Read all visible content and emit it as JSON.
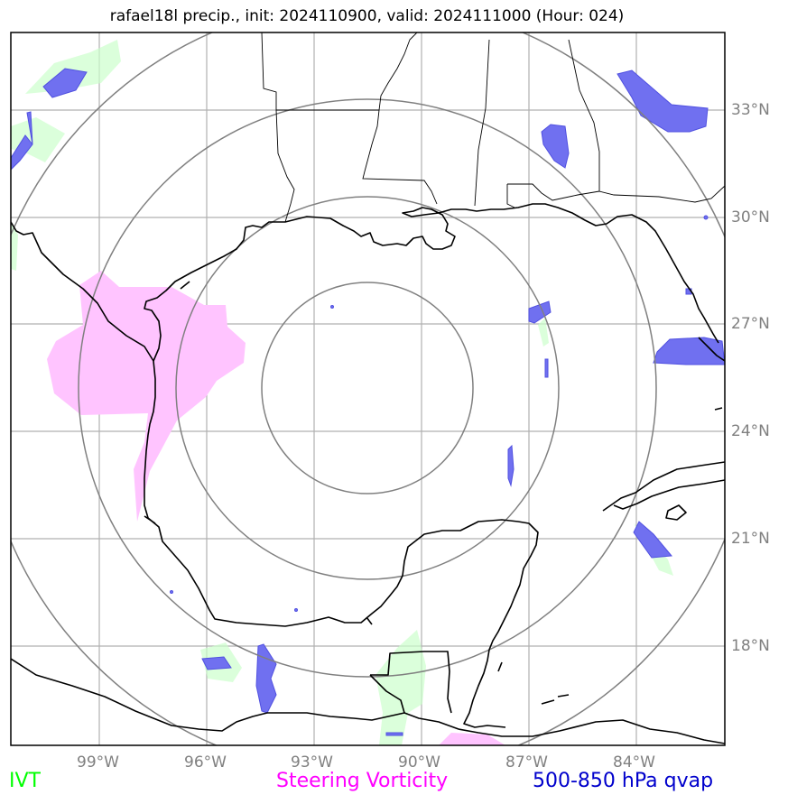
{
  "title": "rafael18l precip., init: 2024110900, valid: 2024111000 (Hour: 024)",
  "lon_labels": [
    "99°W",
    "96°W",
    "93°W",
    "90°W",
    "87°W",
    "84°W"
  ],
  "lat_labels": [
    "33°N",
    "30°N",
    "27°N",
    "24°N",
    "21°N",
    "18°N"
  ],
  "legend": {
    "ivt": "IVT",
    "vort": "Steering Vorticity",
    "qvap": "500-850 hPa qvap"
  },
  "colors": {
    "ivt": "#00ff00",
    "vort": "#ff00ff",
    "qvap": "#0000cc",
    "grid": "#b0b0b0",
    "rings": "#808080",
    "tick_text": "#808080"
  }
}
